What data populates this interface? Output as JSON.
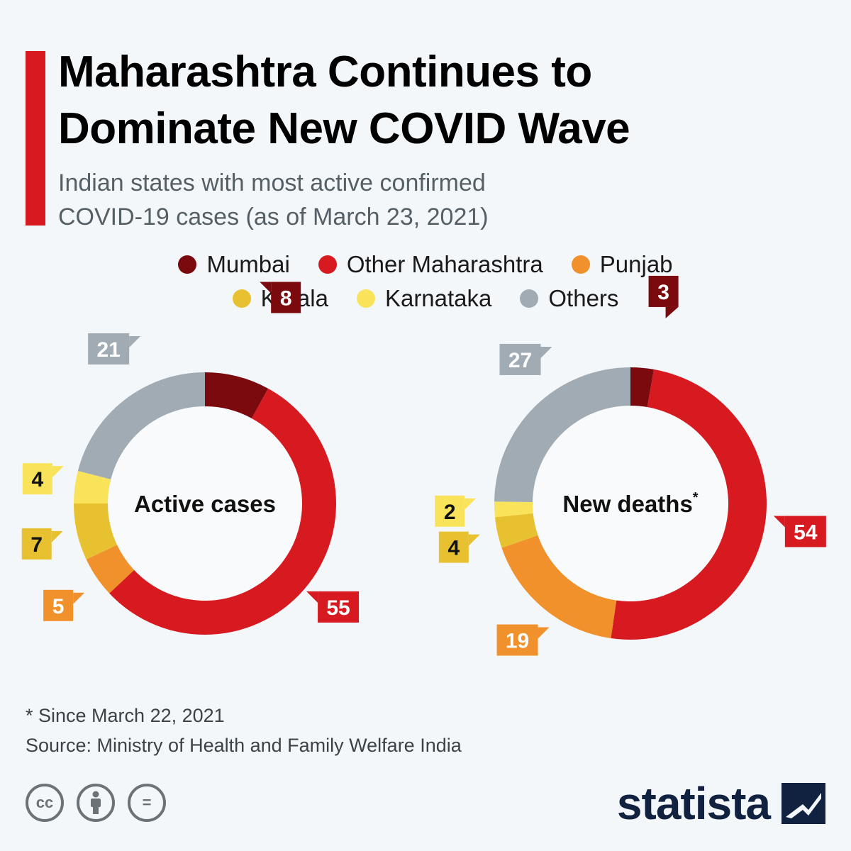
{
  "header": {
    "title_lines": [
      "Maharashtra Continues to",
      "Dominate New COVID Wave"
    ],
    "subtitle_lines": [
      "Indian states with most active confirmed",
      "COVID-19 cases (as of March 23, 2021)"
    ],
    "accent_color": "#d71920"
  },
  "legend": [
    {
      "name": "Mumbai",
      "color": "#7b0a0e"
    },
    {
      "name": "Other Maharashtra",
      "color": "#d71920"
    },
    {
      "name": "Punjab",
      "color": "#f0912b"
    },
    {
      "name": "Kerala",
      "color": "#e8c130"
    },
    {
      "name": "Karnataka",
      "color": "#f8e35a"
    },
    {
      "name": "Others",
      "color": "#a1abb3"
    }
  ],
  "chart_data": [
    {
      "type": "pie",
      "title": "Active cases",
      "unit": "percent",
      "categories": [
        "Mumbai",
        "Other Maharashtra",
        "Punjab",
        "Kerala",
        "Karnataka",
        "Others"
      ],
      "values": [
        8,
        55,
        5,
        7,
        4,
        21
      ]
    },
    {
      "type": "pie",
      "title": "New deaths",
      "title_marker": "*",
      "unit": "percent",
      "categories": [
        "Mumbai",
        "Other Maharashtra",
        "Punjab",
        "Kerala",
        "Karnataka",
        "Others"
      ],
      "values": [
        3,
        54,
        19,
        4,
        2,
        27
      ]
    }
  ],
  "footer": {
    "note": "* Since March 22, 2021",
    "source": "Source: Ministry of Health and Family Welfare India",
    "license_icons": [
      "creative-commons-icon",
      "attribution-icon",
      "no-derivatives-icon"
    ],
    "license_glyphs": [
      "cc",
      "i",
      "="
    ],
    "brand": "statista",
    "brand_color": "#112240"
  }
}
